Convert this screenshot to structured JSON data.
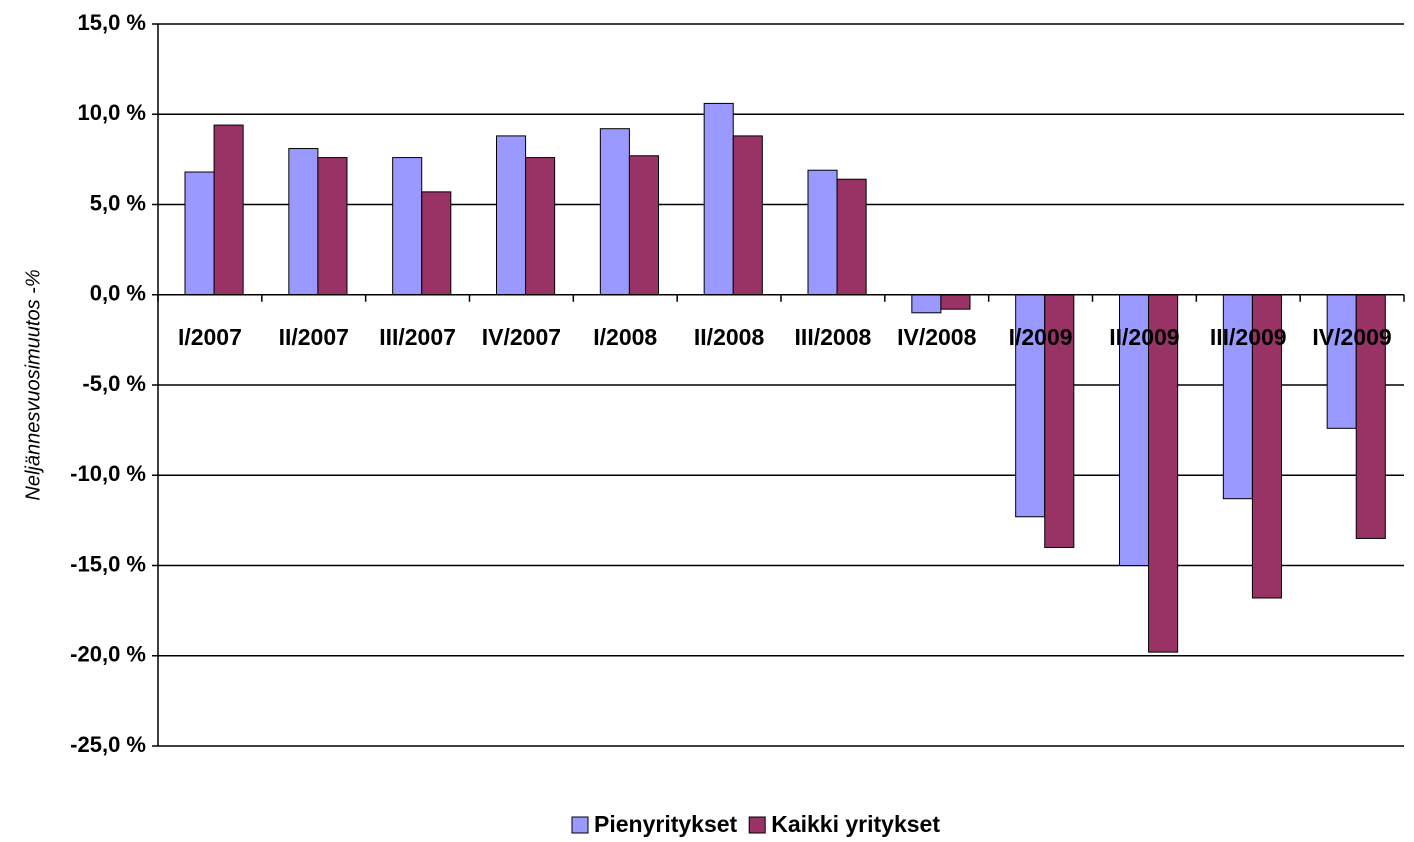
{
  "chart_data": {
    "type": "bar",
    "y_label": "Neljännesvuosimuutos -%",
    "categories": [
      "I/2007",
      "II/2007",
      "III/2007",
      "IV/2007",
      "I/2008",
      "II/2008",
      "III/2008",
      "IV/2008",
      "I/2009",
      "II/2009",
      "III/2009",
      "IV/2009"
    ],
    "series": [
      {
        "name": "Pienyritykset",
        "color": "#9999ff",
        "values": [
          6.8,
          8.1,
          7.6,
          8.8,
          9.2,
          10.6,
          6.9,
          -1.0,
          -12.3,
          -15.0,
          -11.3,
          -7.4
        ]
      },
      {
        "name": "Kaikki yritykset",
        "color": "#993366",
        "values": [
          9.4,
          7.6,
          5.7,
          7.6,
          7.7,
          8.8,
          6.4,
          -0.8,
          -14.0,
          -19.8,
          -16.8,
          -13.5
        ]
      }
    ],
    "ylim": [
      -25,
      15
    ],
    "yticks": [
      {
        "value": -25,
        "label": "-25,0 %"
      },
      {
        "value": -20,
        "label": "-20,0 %"
      },
      {
        "value": -15,
        "label": "-15,0 %"
      },
      {
        "value": -10,
        "label": "-10,0 %"
      },
      {
        "value": -5,
        "label": "-5,0 %"
      },
      {
        "value": 0,
        "label": "0,0 %"
      },
      {
        "value": 5,
        "label": "5,0 %"
      },
      {
        "value": 10,
        "label": "10,0 %"
      },
      {
        "value": 15,
        "label": "15,0 %"
      }
    ],
    "grid": true,
    "legend": "bottom"
  }
}
